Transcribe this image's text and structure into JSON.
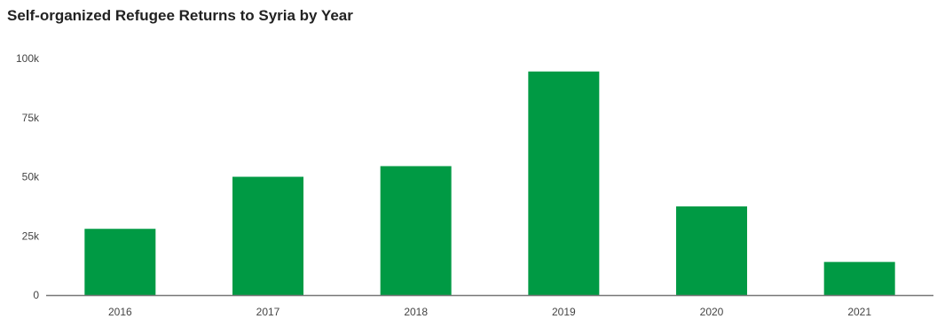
{
  "chart_data": {
    "type": "bar",
    "title": "Self-organized Refugee Returns to Syria by Year",
    "xlabel": "",
    "ylabel": "",
    "categories": [
      "2016",
      "2017",
      "2018",
      "2019",
      "2020",
      "2021"
    ],
    "values": [
      28000,
      50000,
      54500,
      94500,
      37500,
      14000
    ],
    "ylim": [
      0,
      100000
    ],
    "yticks": [
      0,
      25000,
      50000,
      75000,
      100000
    ],
    "ytick_labels": [
      "0",
      "25k",
      "50k",
      "75k",
      "100k"
    ],
    "grid": false,
    "legend": "none",
    "bar_color": "#009a44",
    "axis_color": "#777777"
  }
}
